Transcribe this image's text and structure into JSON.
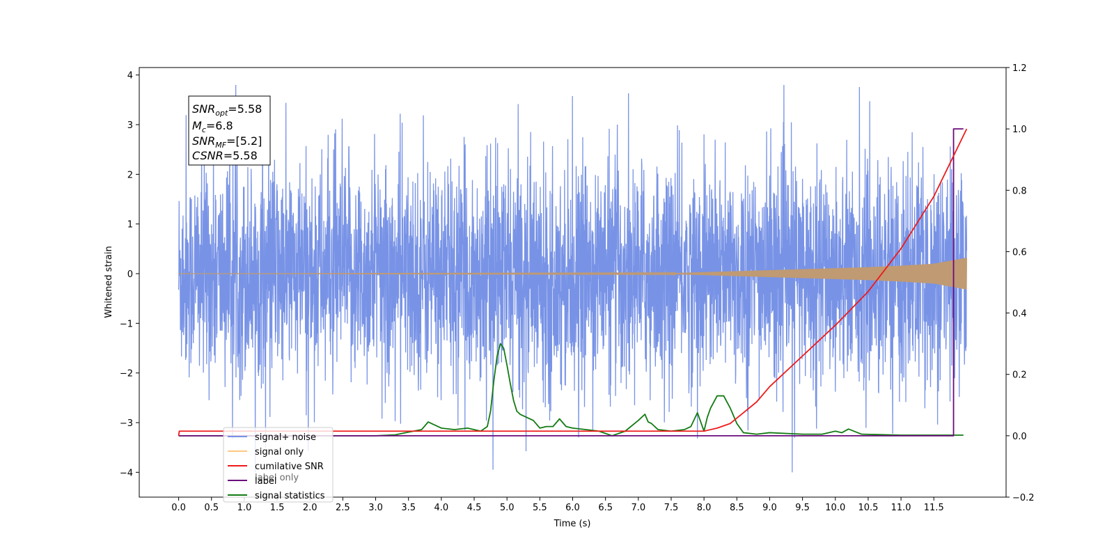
{
  "chart_data": {
    "type": "line",
    "xlabel": "Time (s)",
    "ylabel": "Whitened strain",
    "xlim": [
      -0.6,
      12.6
    ],
    "ylim": [
      -4.5,
      4.15
    ],
    "y2lim": [
      -0.2,
      1.2
    ],
    "x_ticks": [
      "0.0",
      "0.5",
      "1.0",
      "1.5",
      "2.0",
      "2.5",
      "3.0",
      "3.5",
      "4.0",
      "4.5",
      "5.0",
      "5.5",
      "6.0",
      "6.5",
      "7.0",
      "7.5",
      "8.0",
      "8.5",
      "9.0",
      "9.5",
      "10.0",
      "10.5",
      "11.0",
      "11.5"
    ],
    "y_ticks": [
      "−4",
      "−3",
      "−2",
      "−1",
      "0",
      "1",
      "2",
      "3",
      "4"
    ],
    "y2_ticks": [
      "−0.2",
      "0.0",
      "0.2",
      "0.4",
      "0.6",
      "0.8",
      "1.0",
      "1.2"
    ],
    "legend_location": "lower-left",
    "colors": {
      "signal_noise": "#7893e6",
      "signal_only": "#c09a72",
      "signal_only_legend": "#ffc880",
      "cumulative_snr": "#ee1a1a",
      "label": "#6a0a7a",
      "signal_statistics": "#127a12"
    },
    "series": [
      {
        "name": "signal+ noise",
        "axis": "left",
        "description_values": "noise band approx amplitude ±2.5 with peaks to ±4",
        "x_range": [
          0,
          12.0
        ]
      },
      {
        "name": "signal only",
        "axis": "left",
        "envelope": {
          "x": [
            0,
            7.5,
            8.5,
            9.5,
            10.5,
            11.0,
            11.5,
            12.0
          ],
          "amp": [
            0.0,
            0.01,
            0.05,
            0.09,
            0.13,
            0.16,
            0.2,
            0.32
          ]
        }
      },
      {
        "name": "cumilative SNR",
        "axis": "right",
        "x": [
          0,
          0.01,
          8.0,
          8.2,
          8.4,
          8.6,
          8.8,
          9.0,
          9.5,
          10.0,
          10.5,
          11.0,
          11.5,
          12.0
        ],
        "y": [
          0.0,
          0.015,
          0.015,
          0.025,
          0.04,
          0.075,
          0.11,
          0.16,
          0.26,
          0.36,
          0.47,
          0.61,
          0.78,
          1.0
        ]
      },
      {
        "name": "label",
        "axis": "right",
        "x": [
          0,
          11.75,
          11.8,
          11.8,
          11.95
        ],
        "y": [
          0.0,
          0.0,
          0.0,
          1.0,
          1.0
        ]
      },
      {
        "name": "signal statistics",
        "axis": "right",
        "x": [
          0,
          3.0,
          3.3,
          3.5,
          3.7,
          3.8,
          3.9,
          4.0,
          4.2,
          4.4,
          4.6,
          4.7,
          4.75,
          4.8,
          4.85,
          4.9,
          4.95,
          5.0,
          5.05,
          5.1,
          5.15,
          5.2,
          5.4,
          5.5,
          5.6,
          5.7,
          5.8,
          5.9,
          6.0,
          6.2,
          6.4,
          6.6,
          6.8,
          7.0,
          7.1,
          7.15,
          7.2,
          7.3,
          7.5,
          7.7,
          7.8,
          7.9,
          8.0,
          8.05,
          8.1,
          8.2,
          8.3,
          8.4,
          8.5,
          8.6,
          8.8,
          9.0,
          9.5,
          9.8,
          10.0,
          10.1,
          10.2,
          10.4,
          11.0,
          11.5,
          11.95
        ],
        "y": [
          0.0,
          0.0,
          0.003,
          0.012,
          0.02,
          0.045,
          0.035,
          0.025,
          0.02,
          0.025,
          0.015,
          0.03,
          0.08,
          0.18,
          0.26,
          0.3,
          0.285,
          0.23,
          0.17,
          0.115,
          0.08,
          0.07,
          0.05,
          0.025,
          0.03,
          0.03,
          0.055,
          0.03,
          0.025,
          0.02,
          0.015,
          0.0,
          0.015,
          0.05,
          0.07,
          0.045,
          0.04,
          0.02,
          0.015,
          0.02,
          0.03,
          0.075,
          0.015,
          0.06,
          0.09,
          0.13,
          0.13,
          0.09,
          0.04,
          0.01,
          0.005,
          0.01,
          0.005,
          0.005,
          0.015,
          0.01,
          0.022,
          0.005,
          0.002,
          0.002,
          0.002
        ]
      }
    ],
    "annotation": {
      "line1_main": "SNR",
      "line1_sub": "opt",
      "line1_rest": "=5.58",
      "line2_main": "M",
      "line2_sub": "c",
      "line2_rest": "=6.8",
      "line3_main": "SNR",
      "line3_sub": "MF",
      "line3_rest": "=[5.2]",
      "line4_main": "CSNR",
      "line4_rest": "=5.58"
    },
    "legend": [
      "signal+ noise",
      "signal only",
      "cumilative SNR",
      "label",
      "signal statistics"
    ],
    "legend_hidden_text": "label only"
  }
}
